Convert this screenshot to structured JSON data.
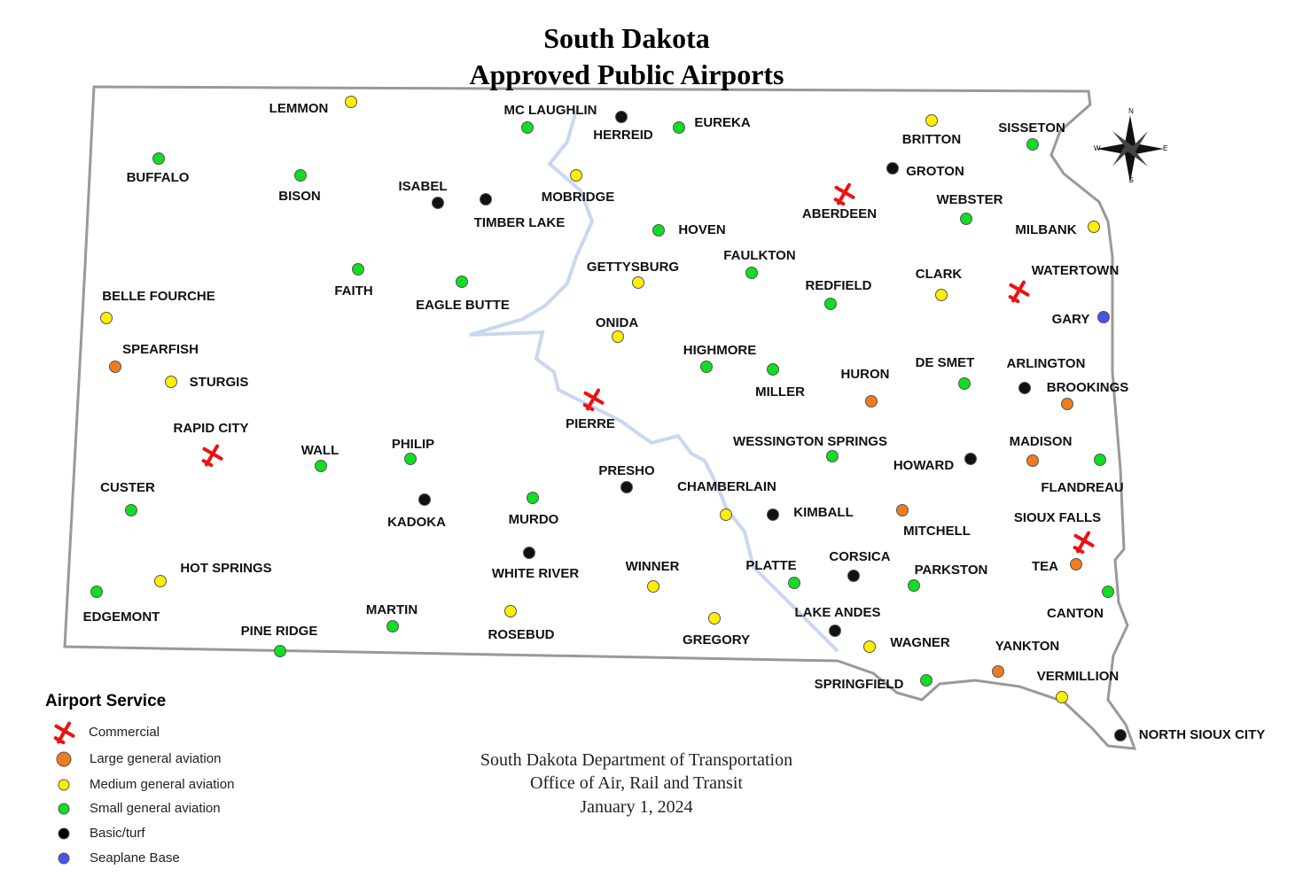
{
  "title": [
    "South Dakota",
    "Approved Public Airports"
  ],
  "compass": [
    "N",
    "E",
    "S",
    "W"
  ],
  "legend": {
    "title": "Airport Service",
    "items": [
      {
        "label": "Commercial",
        "color": "#ee1111",
        "airports": [
          "ABERDEEN",
          "WATERTOWN",
          "PIERRE",
          "RAPID CITY",
          "SIOUX FALLS"
        ]
      },
      {
        "label": "Large general aviation",
        "color": "#f07c22",
        "airports": [
          "SPEARFISH",
          "HURON",
          "BROOKINGS",
          "MADISON",
          "MITCHELL",
          "TEA",
          "YANKTON"
        ]
      },
      {
        "label": "Medium general aviation",
        "color": "#ffee00",
        "airports": [
          "LEMMON",
          "BRITTON",
          "MOBRIDGE",
          "MILBANK",
          "GETTYSBURG",
          "CLARK",
          "BELLE FOURCHE",
          "ONIDA",
          "STURGIS",
          "CHAMBERLAIN",
          "HOT SPRINGS",
          "WINNER",
          "ROSEBUD",
          "GREGORY",
          "WAGNER",
          "VERMILLION"
        ]
      },
      {
        "label": "Small general aviation",
        "color": "#11dd22",
        "airports": [
          "MC LAUGHLIN",
          "EUREKA",
          "SISSETON",
          "BUFFALO",
          "BISON",
          "WEBSTER",
          "HOVEN",
          "FAITH",
          "FAULKTON",
          "EAGLE BUTTE",
          "REDFIELD",
          "HIGHMORE",
          "MILLER",
          "DE SMET",
          "WESSINGTON SPRINGS",
          "WALL",
          "PHILIP",
          "FLANDREAU",
          "CUSTER",
          "MURDO",
          "PLATTE",
          "PARKSTON",
          "CANTON",
          "EDGEMONT",
          "MARTIN",
          "PINE RIDGE",
          "SPRINGFIELD"
        ]
      },
      {
        "label": "Basic/turf",
        "color": "#000000",
        "airports": [
          "HERREID",
          "GROTON",
          "ISABEL",
          "TIMBER LAKE",
          "ARLINGTON",
          "HOWARD",
          "KADOKA",
          "PRESHO",
          "KIMBALL",
          "WHITE RIVER",
          "CORSICA",
          "LAKE ANDES",
          "NORTH SIOUX CITY"
        ]
      },
      {
        "label": "Seaplane Base",
        "color": "#4455ee",
        "airports": [
          "GARY"
        ]
      }
    ]
  },
  "footer": [
    "South Dakota Department of Transportation",
    "Office of Air, Rail and Transit",
    "January 1, 2024"
  ]
}
